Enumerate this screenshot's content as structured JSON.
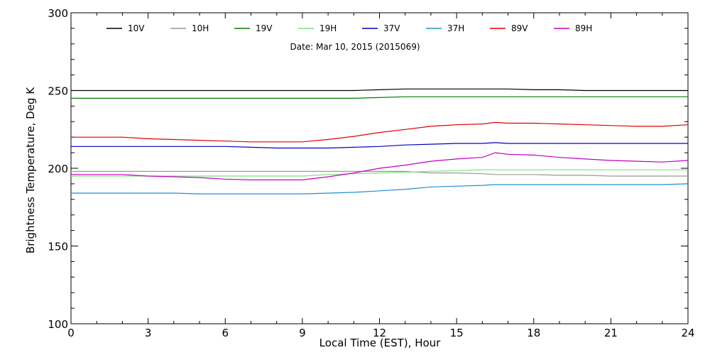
{
  "chart_data": {
    "type": "line",
    "title": "Date: Mar 10, 2015 (2015069)",
    "xlabel": "Local Time (EST), Hour",
    "ylabel": "Brightness Temperature, Deg K",
    "xlim": [
      0,
      24
    ],
    "ylim": [
      100,
      300
    ],
    "xticks": [
      0,
      3,
      6,
      9,
      12,
      15,
      18,
      21,
      24
    ],
    "yticks": [
      100,
      150,
      200,
      250,
      300
    ],
    "legend_position": "top",
    "grid": false,
    "x": [
      0,
      1,
      2,
      3,
      4,
      5,
      6,
      7,
      8,
      9,
      10,
      11,
      12,
      13,
      14,
      15,
      16,
      16.5,
      17,
      18,
      19,
      20,
      21,
      22,
      23,
      24
    ],
    "series": [
      {
        "name": "10V",
        "color": "#000000",
        "values": [
          250,
          250,
          250,
          250,
          250,
          250,
          250,
          250,
          250,
          250,
          250,
          250,
          250.5,
          251,
          251,
          251,
          251,
          251,
          251,
          250.5,
          250.5,
          250,
          250,
          250,
          250,
          250
        ]
      },
      {
        "name": "10H",
        "color": "#999999",
        "values": [
          198,
          198,
          198,
          198,
          198,
          198,
          198,
          198,
          198,
          198,
          198,
          198,
          198,
          198,
          197,
          197,
          196.5,
          196,
          196,
          196,
          195.5,
          195.5,
          195,
          195,
          195,
          195
        ]
      },
      {
        "name": "19V",
        "color": "#008000",
        "values": [
          245,
          245,
          245,
          245,
          245,
          245,
          245,
          245,
          245,
          245,
          245,
          245,
          245.5,
          246,
          246,
          246,
          246,
          246,
          246,
          246,
          246,
          246,
          246,
          246,
          246,
          246
        ]
      },
      {
        "name": "19H",
        "color": "#80e080",
        "values": [
          195,
          195,
          195,
          195,
          195,
          195,
          195,
          195,
          195,
          195,
          196,
          196.5,
          197,
          197.5,
          198,
          198.5,
          199,
          199,
          199,
          199,
          199,
          199,
          199,
          199,
          199,
          199
        ]
      },
      {
        "name": "37V",
        "color": "#0000c0",
        "values": [
          214,
          214,
          214,
          214,
          214,
          214,
          214,
          213.5,
          213,
          213,
          213,
          213.5,
          214,
          215,
          215.5,
          216,
          216,
          216.5,
          216,
          216,
          216,
          216,
          216,
          216,
          216,
          216
        ]
      },
      {
        "name": "37H",
        "color": "#1e90d0",
        "values": [
          184,
          184,
          184,
          184,
          184,
          183.5,
          183.5,
          183.5,
          183.5,
          183.5,
          184,
          184.5,
          185.5,
          186.5,
          188,
          188.5,
          189,
          189.5,
          189.5,
          189.5,
          189.5,
          189.5,
          189.5,
          189.5,
          189.5,
          190
        ]
      },
      {
        "name": "89V",
        "color": "#e00000",
        "values": [
          220,
          220,
          220,
          219,
          218.5,
          218,
          217.5,
          217,
          217,
          217,
          218.5,
          220.5,
          223,
          225,
          227,
          228,
          228.5,
          229.5,
          229,
          229,
          228.5,
          228,
          227.5,
          227,
          227,
          228
        ]
      },
      {
        "name": "89H",
        "color": "#c000c0",
        "values": [
          196,
          196,
          196,
          195,
          194.5,
          194,
          193,
          192.5,
          192.5,
          192.5,
          194.5,
          197,
          200,
          202,
          204.5,
          206,
          207,
          210,
          209,
          208.5,
          207,
          206,
          205,
          204.5,
          204,
          205
        ]
      }
    ]
  }
}
